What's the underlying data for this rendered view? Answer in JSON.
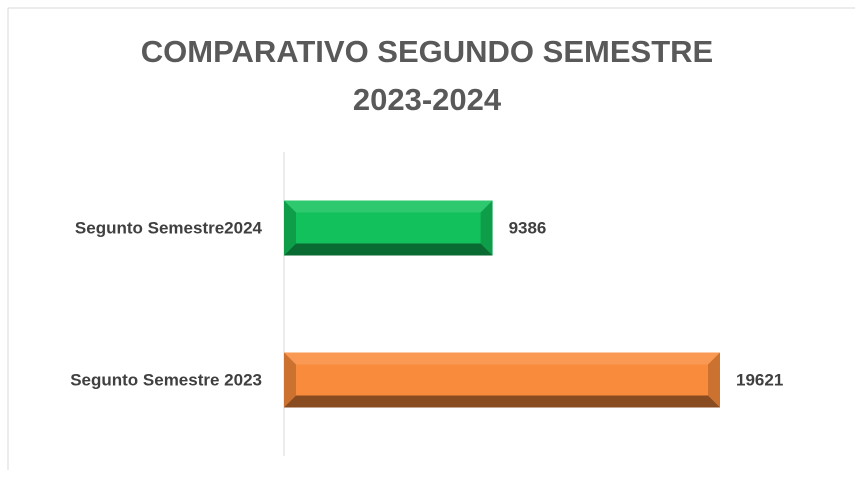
{
  "chart_data": {
    "type": "bar",
    "orientation": "horizontal",
    "title": "COMPARATIVO SEGUNDO SEMESTRE 2023-2024",
    "categories": [
      "Segunto Semestre2024",
      "Segunto Semestre 2023"
    ],
    "values": [
      9386,
      19621
    ],
    "colors": [
      "#12c15b",
      "#f98b3c"
    ]
  }
}
